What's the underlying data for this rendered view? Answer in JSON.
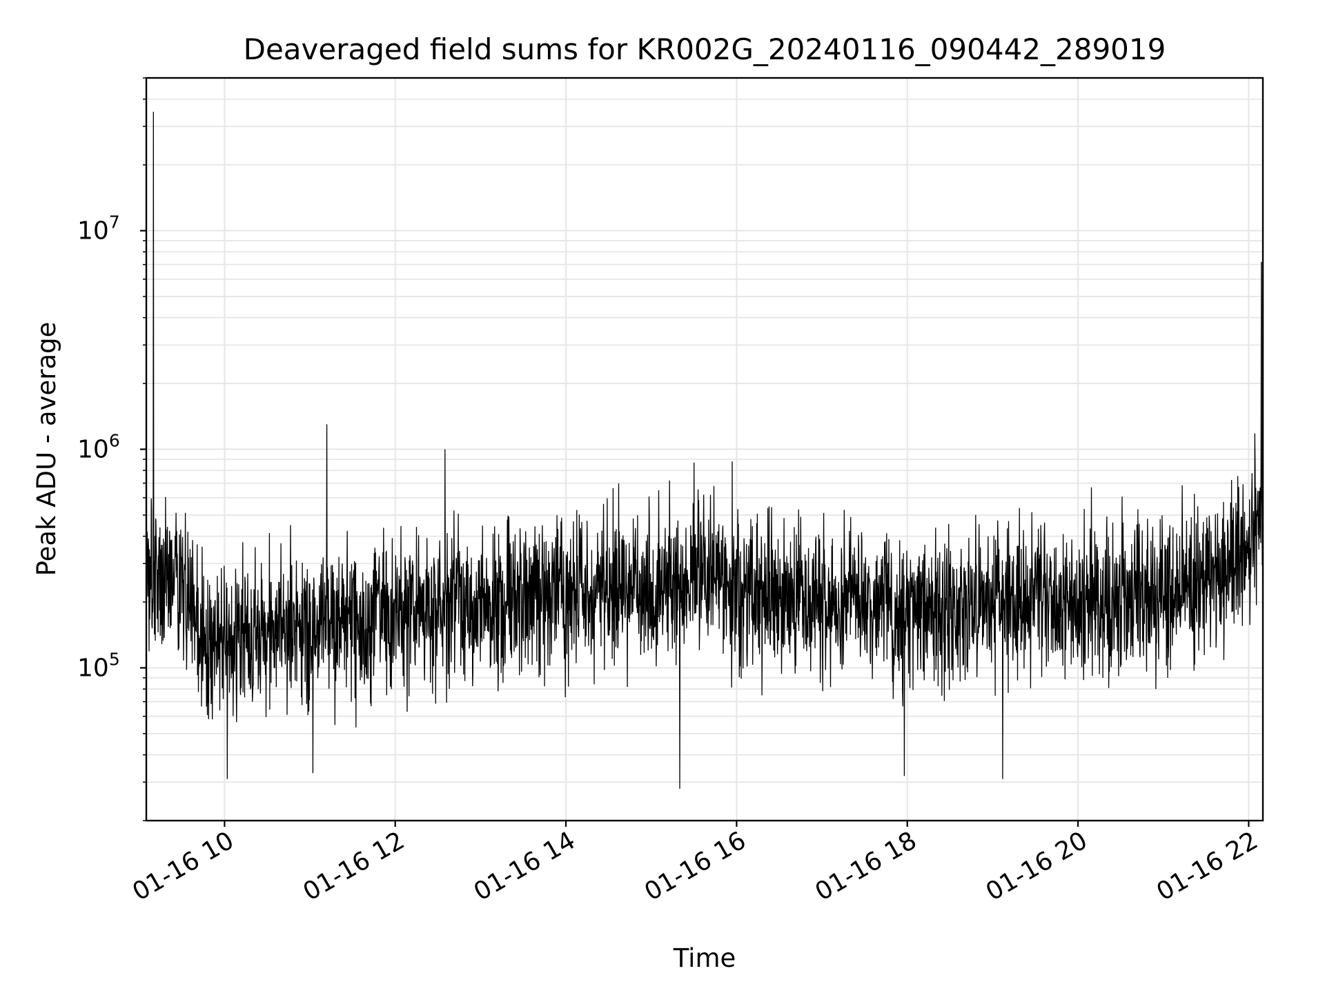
{
  "chart_data": {
    "type": "line",
    "title": "Deaveraged field sums for KR002G_20240116_090442_289019",
    "xlabel": "Time",
    "ylabel": "Peak ADU - average",
    "x_scale": "time",
    "y_scale": "log",
    "xlim": [
      "2024-01-16 09:05",
      "2024-01-16 22:10"
    ],
    "ylim": [
      20000,
      50000000
    ],
    "grid": true,
    "legend": "none",
    "line_color": "#000000",
    "grid_color": "#e6e6e6",
    "x_ticks": [
      {
        "value": "2024-01-16 10:00",
        "label": "01-16 10"
      },
      {
        "value": "2024-01-16 12:00",
        "label": "01-16 12"
      },
      {
        "value": "2024-01-16 14:00",
        "label": "01-16 14"
      },
      {
        "value": "2024-01-16 16:00",
        "label": "01-16 16"
      },
      {
        "value": "2024-01-16 18:00",
        "label": "01-16 18"
      },
      {
        "value": "2024-01-16 20:00",
        "label": "01-16 20"
      },
      {
        "value": "2024-01-16 22:00",
        "label": "01-16 22"
      }
    ],
    "y_ticks": [
      {
        "value": 100000,
        "base": "10",
        "exp": "5"
      },
      {
        "value": 1000000,
        "base": "10",
        "exp": "6"
      },
      {
        "value": 10000000,
        "base": "10",
        "exp": "7"
      }
    ],
    "series": [
      {
        "baseline": [
          [
            "2024-01-16 09:05",
            250000
          ],
          [
            "2024-01-16 09:30",
            260000
          ],
          [
            "2024-01-16 09:45",
            120000
          ],
          [
            "2024-01-16 10:00",
            140000
          ],
          [
            "2024-01-16 11:00",
            150000
          ],
          [
            "2024-01-16 12:00",
            180000
          ],
          [
            "2024-01-16 13:00",
            200000
          ],
          [
            "2024-01-16 14:00",
            220000
          ],
          [
            "2024-01-16 15:00",
            230000
          ],
          [
            "2024-01-16 15:30",
            260000
          ],
          [
            "2024-01-16 16:00",
            230000
          ],
          [
            "2024-01-16 17:00",
            190000
          ],
          [
            "2024-01-16 18:00",
            180000
          ],
          [
            "2024-01-16 19:00",
            190000
          ],
          [
            "2024-01-16 20:00",
            200000
          ],
          [
            "2024-01-16 21:00",
            220000
          ],
          [
            "2024-01-16 21:45",
            280000
          ],
          [
            "2024-01-16 22:00",
            380000
          ],
          [
            "2024-01-16 22:10",
            450000
          ]
        ],
        "spikes": [
          [
            "2024-01-16 09:10",
            35000000
          ],
          [
            "2024-01-16 11:12",
            1300000
          ],
          [
            "2024-01-16 12:35",
            1000000
          ],
          [
            "2024-01-16 15:30",
            870000
          ],
          [
            "2024-01-16 15:57",
            880000
          ],
          [
            "2024-01-16 22:09",
            7200000
          ],
          [
            "2024-01-16 22:10",
            1600000
          ],
          [
            "2024-01-16 10:02",
            31000
          ],
          [
            "2024-01-16 11:02",
            33000
          ],
          [
            "2024-01-16 15:20",
            28000
          ],
          [
            "2024-01-16 17:58",
            32000
          ],
          [
            "2024-01-16 19:07",
            31000
          ]
        ]
      }
    ]
  }
}
